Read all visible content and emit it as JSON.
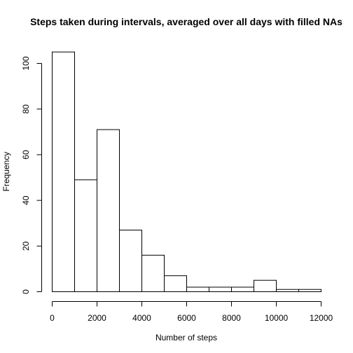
{
  "chart_data": {
    "type": "bar",
    "title": "Steps taken during intervals, averaged over all days with filled NAs",
    "xlabel": "Number of steps",
    "ylabel": "Frequency",
    "bin_edges": [
      0,
      1000,
      2000,
      3000,
      4000,
      5000,
      6000,
      7000,
      8000,
      9000,
      10000,
      11000,
      12000
    ],
    "values": [
      105,
      49,
      71,
      27,
      16,
      7,
      2,
      2,
      2,
      5,
      1,
      1
    ],
    "xlim": [
      0,
      12000
    ],
    "ylim": [
      0,
      105
    ],
    "x_ticks": [
      0,
      2000,
      4000,
      6000,
      8000,
      10000,
      12000
    ],
    "y_ticks": [
      0,
      20,
      40,
      60,
      80,
      100
    ],
    "grid": false,
    "bar_fill": "#ffffff",
    "bar_stroke": "#000000"
  }
}
